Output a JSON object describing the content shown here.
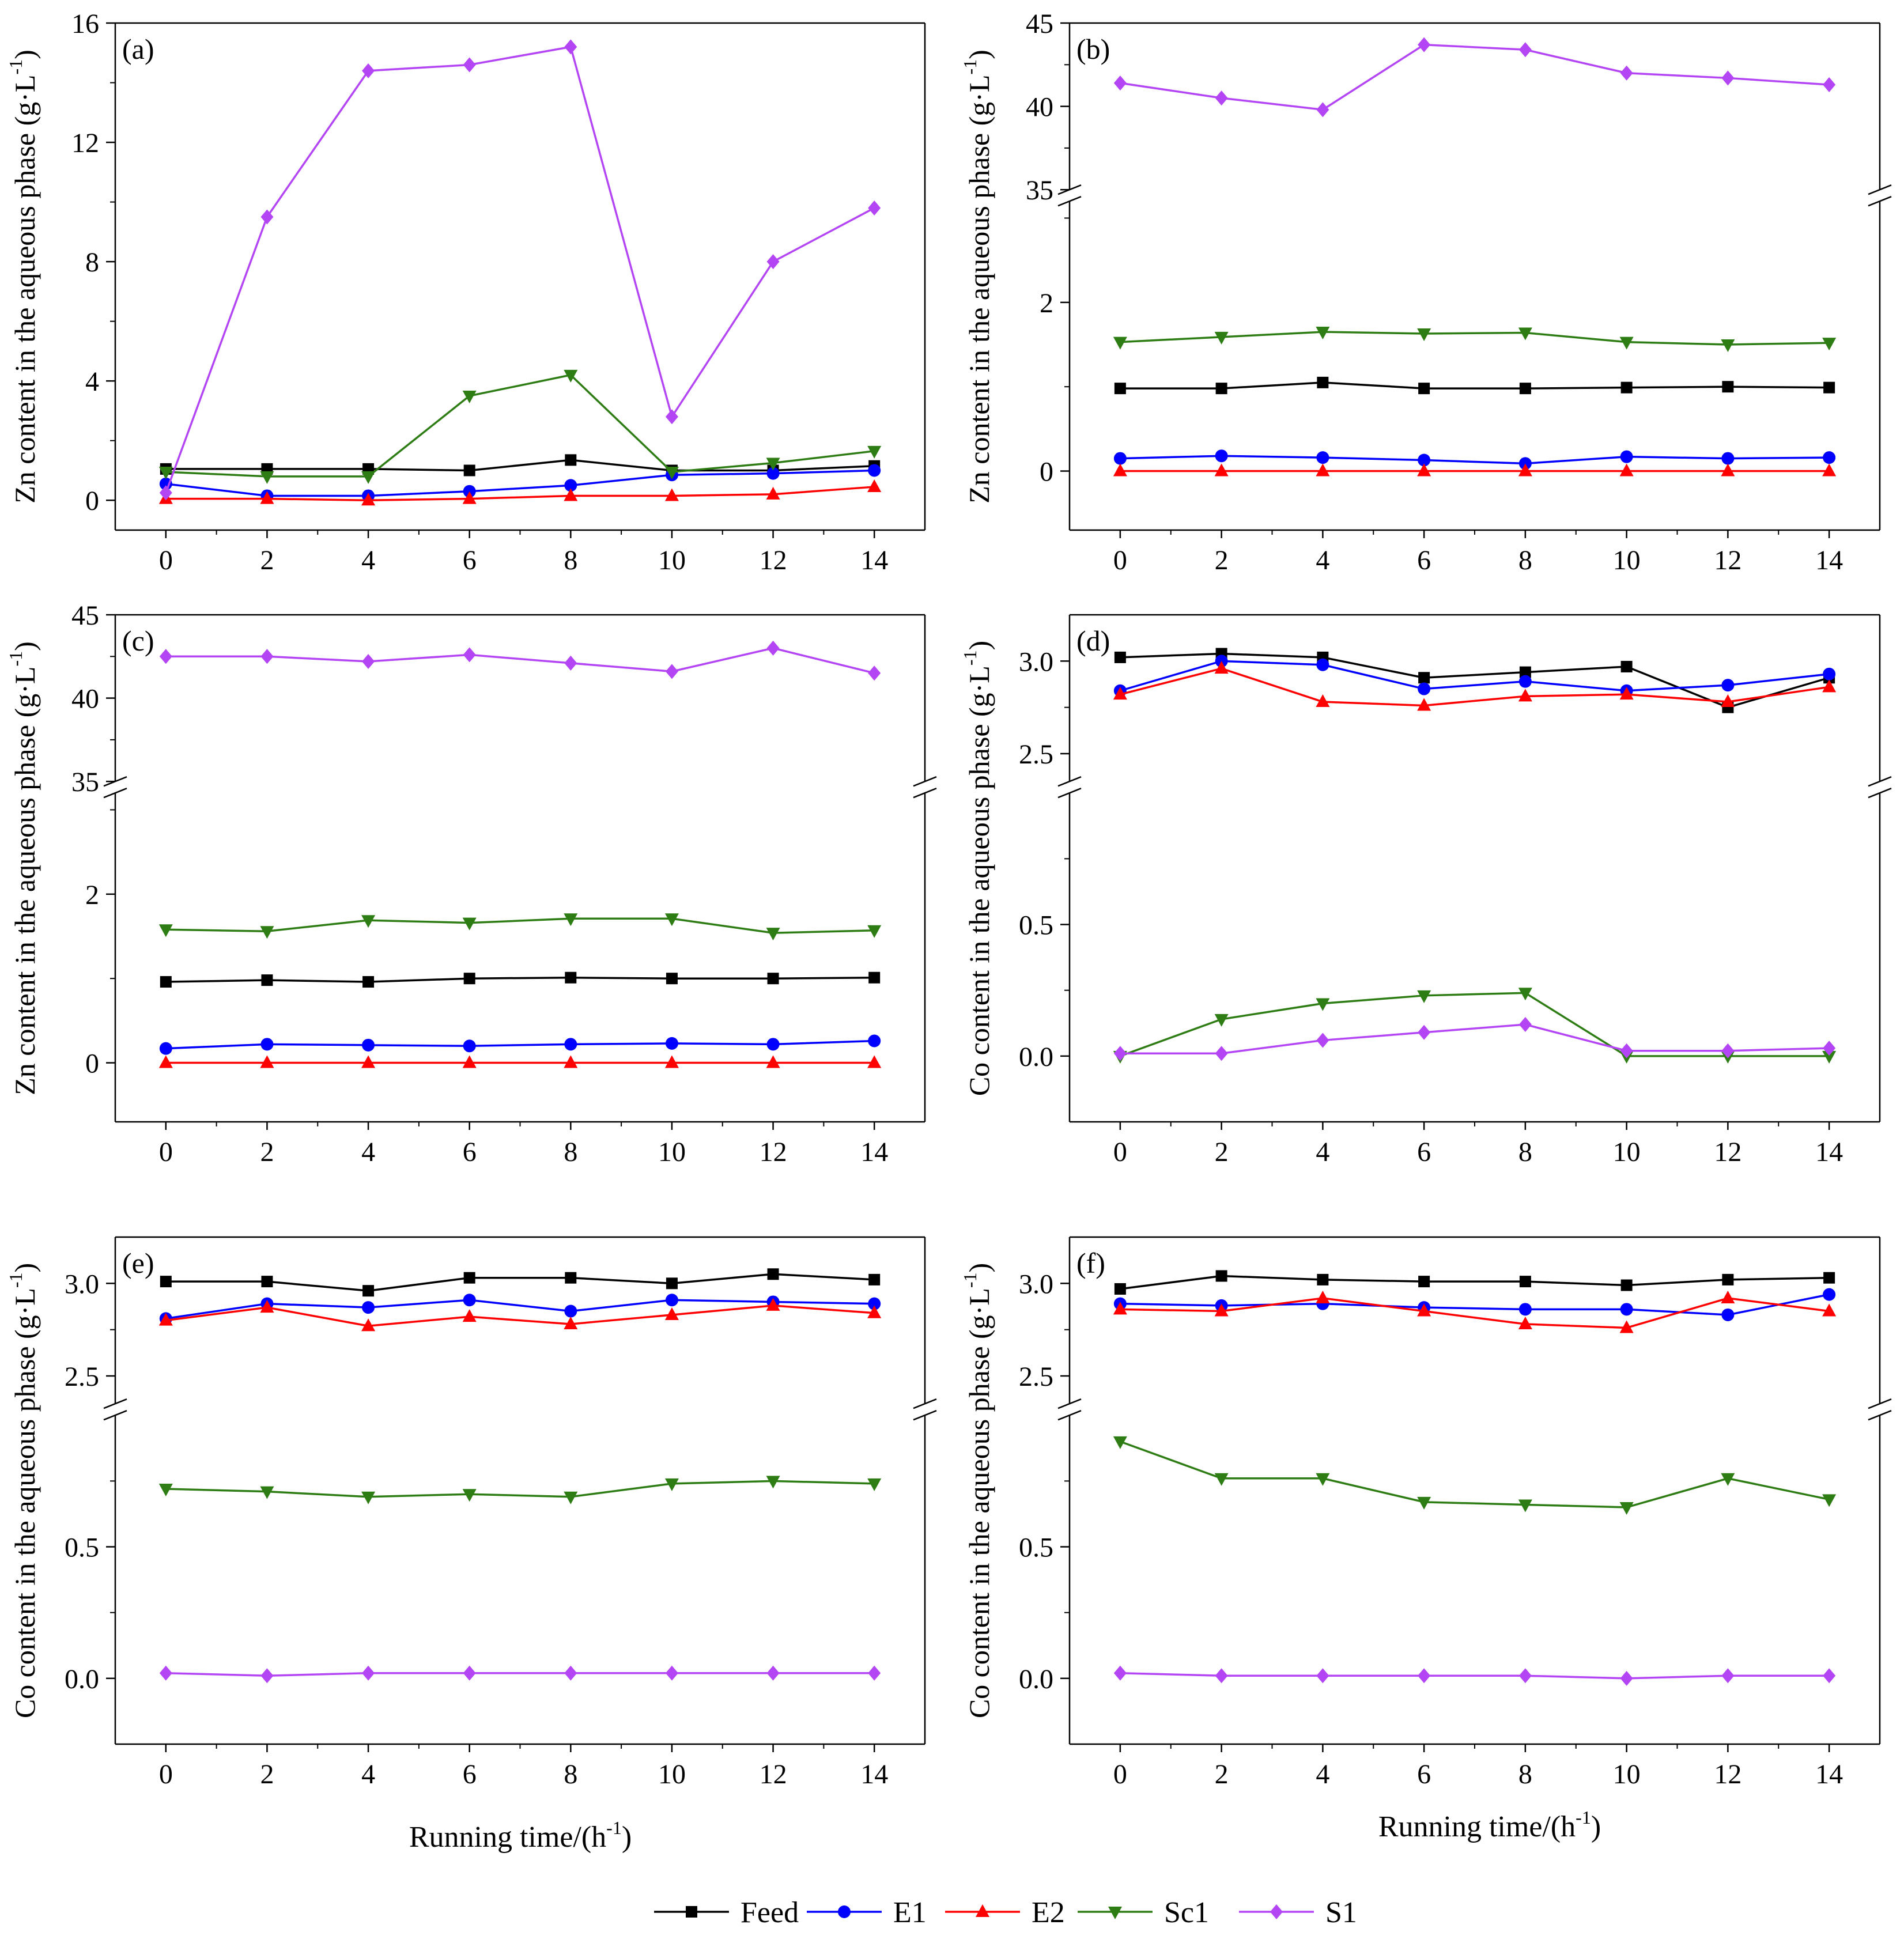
{
  "figure": {
    "xlabel": "Running time/(h",
    "xlabel_sup": "-1",
    "xlabel_close": ")"
  },
  "legend": [
    {
      "name": "Feed",
      "color": "#000000",
      "marker": "square"
    },
    {
      "name": "E1",
      "color": "#0000ff",
      "marker": "circle"
    },
    {
      "name": "E2",
      "color": "#ff0000",
      "marker": "triangle-up"
    },
    {
      "name": "Sc1",
      "color": "#2e7d14",
      "marker": "triangle-down"
    },
    {
      "name": "S1",
      "color": "#b445f5",
      "marker": "diamond"
    }
  ],
  "chart_data": [
    {
      "type": "line",
      "panel": "(a)",
      "element": "Zn",
      "ylabel": "Zn content in the aqueous phase (g·L",
      "ylabel_sup": "-1",
      "ylabel_close": ")",
      "x": [
        0,
        2,
        4,
        6,
        8,
        10,
        12,
        14
      ],
      "xlim": [
        -1,
        15
      ],
      "xticks": [
        "0",
        "2",
        "4",
        "6",
        "8",
        "10",
        "12",
        "14"
      ],
      "ylim": [
        -1,
        16
      ],
      "yticks": [
        "0",
        "4",
        "8",
        "12",
        "16"
      ],
      "series": [
        {
          "name": "Feed",
          "values": [
            1.05,
            1.05,
            1.05,
            1.0,
            1.35,
            1.0,
            1.0,
            1.15
          ]
        },
        {
          "name": "E1",
          "values": [
            0.55,
            0.15,
            0.15,
            0.3,
            0.5,
            0.85,
            0.9,
            1.0
          ]
        },
        {
          "name": "E2",
          "values": [
            0.05,
            0.05,
            0.0,
            0.05,
            0.15,
            0.15,
            0.2,
            0.45
          ]
        },
        {
          "name": "Sc1",
          "values": [
            0.95,
            0.8,
            0.8,
            3.5,
            4.2,
            0.95,
            1.25,
            1.65
          ]
        },
        {
          "name": "S1",
          "values": [
            0.25,
            9.5,
            14.4,
            14.6,
            15.2,
            2.8,
            8.0,
            9.8
          ]
        }
      ]
    },
    {
      "type": "line",
      "panel": "(b)",
      "element": "Zn",
      "ylabel": "Zn content in the aqueous phase (g·L",
      "ylabel_sup": "-1",
      "ylabel_close": ")",
      "x": [
        0,
        2,
        4,
        6,
        8,
        10,
        12,
        14
      ],
      "xlim": [
        -1,
        15
      ],
      "xticks": [
        "0",
        "2",
        "4",
        "6",
        "8",
        "10",
        "12",
        "14"
      ],
      "ylim_lower": [
        -0.7,
        3.2
      ],
      "ylim_upper": [
        35,
        45
      ],
      "yticks_lower": [
        "0",
        "2"
      ],
      "yticks_upper": [
        "35",
        "40",
        "45"
      ],
      "series": [
        {
          "name": "Feed",
          "values": [
            0.98,
            0.98,
            1.05,
            0.98,
            0.98,
            0.99,
            1.0,
            0.99
          ]
        },
        {
          "name": "E1",
          "values": [
            0.15,
            0.18,
            0.16,
            0.13,
            0.09,
            0.17,
            0.15,
            0.16
          ]
        },
        {
          "name": "E2",
          "values": [
            0.0,
            0.0,
            0.0,
            0.0,
            0.0,
            0.0,
            0.0,
            0.0
          ]
        },
        {
          "name": "Sc1",
          "values": [
            1.53,
            1.59,
            1.65,
            1.63,
            1.64,
            1.53,
            1.5,
            1.52
          ]
        },
        {
          "name": "S1",
          "values": [
            41.4,
            40.5,
            39.8,
            43.7,
            43.4,
            42.0,
            41.7,
            41.3
          ]
        }
      ]
    },
    {
      "type": "line",
      "panel": "(c)",
      "element": "Zn",
      "ylabel": "Zn content in the aqueous phase (g·L",
      "ylabel_sup": "-1",
      "ylabel_close": ")",
      "x": [
        0,
        2,
        4,
        6,
        8,
        10,
        12,
        14
      ],
      "xlim": [
        -1,
        15
      ],
      "xticks": [
        "0",
        "2",
        "4",
        "6",
        "8",
        "10",
        "12",
        "14"
      ],
      "ylim_lower": [
        -0.7,
        3.2
      ],
      "ylim_upper": [
        35,
        45
      ],
      "yticks_lower": [
        "0",
        "2"
      ],
      "yticks_upper": [
        "35",
        "40",
        "45"
      ],
      "series": [
        {
          "name": "Feed",
          "values": [
            0.96,
            0.98,
            0.96,
            1.0,
            1.01,
            1.0,
            1.0,
            1.01
          ]
        },
        {
          "name": "E1",
          "values": [
            0.17,
            0.22,
            0.21,
            0.2,
            0.22,
            0.23,
            0.22,
            0.26
          ]
        },
        {
          "name": "E2",
          "values": [
            0.0,
            0.0,
            0.0,
            0.0,
            0.0,
            0.0,
            0.0,
            0.0
          ]
        },
        {
          "name": "Sc1",
          "values": [
            1.58,
            1.56,
            1.69,
            1.66,
            1.71,
            1.71,
            1.54,
            1.57
          ]
        },
        {
          "name": "S1",
          "values": [
            42.5,
            42.5,
            42.2,
            42.6,
            42.1,
            41.6,
            43.0,
            41.5
          ]
        }
      ]
    },
    {
      "type": "line",
      "panel": "(d)",
      "element": "Co",
      "ylabel": "Co content in the aqueous phase (g·L",
      "ylabel_sup": "-1",
      "ylabel_close": ")",
      "x": [
        0,
        2,
        4,
        6,
        8,
        10,
        12,
        14
      ],
      "xlim": [
        -1,
        15
      ],
      "xticks": [
        "0",
        "2",
        "4",
        "6",
        "8",
        "10",
        "12",
        "14"
      ],
      "ylim_lower": [
        -0.25,
        1.0
      ],
      "ylim_upper": [
        2.35,
        3.25
      ],
      "yticks_lower": [
        "0.0",
        "0.5"
      ],
      "yticks_upper": [
        "2.5",
        "3.0"
      ],
      "series": [
        {
          "name": "Feed",
          "values": [
            3.02,
            3.04,
            3.02,
            2.91,
            2.94,
            2.97,
            2.75,
            2.91
          ]
        },
        {
          "name": "E1",
          "values": [
            2.84,
            3.0,
            2.98,
            2.85,
            2.89,
            2.84,
            2.87,
            2.93
          ]
        },
        {
          "name": "E2",
          "values": [
            2.82,
            2.96,
            2.78,
            2.76,
            2.81,
            2.82,
            2.78,
            2.86
          ]
        },
        {
          "name": "Sc1",
          "values": [
            0.0,
            0.14,
            0.2,
            0.23,
            0.24,
            0.0,
            0.0,
            0.0
          ]
        },
        {
          "name": "S1",
          "values": [
            0.01,
            0.01,
            0.06,
            0.09,
            0.12,
            0.02,
            0.02,
            0.03
          ]
        }
      ]
    },
    {
      "type": "line",
      "panel": "(e)",
      "element": "Co",
      "ylabel": "Co content in the aqueous phase (g·L",
      "ylabel_sup": "-1",
      "ylabel_close": ")",
      "x": [
        0,
        2,
        4,
        6,
        8,
        10,
        12,
        14
      ],
      "xlim": [
        -1,
        15
      ],
      "xticks": [
        "0",
        "2",
        "4",
        "6",
        "8",
        "10",
        "12",
        "14"
      ],
      "ylim_lower": [
        -0.25,
        1.0
      ],
      "ylim_upper": [
        2.35,
        3.25
      ],
      "yticks_lower": [
        "0.0",
        "0.5"
      ],
      "yticks_upper": [
        "2.5",
        "3.0"
      ],
      "series": [
        {
          "name": "Feed",
          "values": [
            3.01,
            3.01,
            2.96,
            3.03,
            3.03,
            3.0,
            3.05,
            3.02
          ]
        },
        {
          "name": "E1",
          "values": [
            2.81,
            2.89,
            2.87,
            2.91,
            2.85,
            2.91,
            2.9,
            2.89
          ]
        },
        {
          "name": "E2",
          "values": [
            2.8,
            2.87,
            2.77,
            2.82,
            2.78,
            2.83,
            2.88,
            2.84
          ]
        },
        {
          "name": "Sc1",
          "values": [
            0.72,
            0.71,
            0.69,
            0.7,
            0.69,
            0.74,
            0.75,
            0.74
          ]
        },
        {
          "name": "S1",
          "values": [
            0.02,
            0.01,
            0.02,
            0.02,
            0.02,
            0.02,
            0.02,
            0.02
          ]
        }
      ]
    },
    {
      "type": "line",
      "panel": "(f)",
      "element": "Co",
      "ylabel": "Co content in the aqueous phase (g·L",
      "ylabel_sup": "-1",
      "ylabel_close": ")",
      "x": [
        0,
        2,
        4,
        6,
        8,
        10,
        12,
        14
      ],
      "xlim": [
        -1,
        15
      ],
      "xticks": [
        "0",
        "2",
        "4",
        "6",
        "8",
        "10",
        "12",
        "14"
      ],
      "ylim_lower": [
        -0.25,
        1.0
      ],
      "ylim_upper": [
        2.35,
        3.25
      ],
      "yticks_lower": [
        "0.0",
        "0.5"
      ],
      "yticks_upper": [
        "2.5",
        "3.0"
      ],
      "series": [
        {
          "name": "Feed",
          "values": [
            2.97,
            3.04,
            3.02,
            3.01,
            3.01,
            2.99,
            3.02,
            3.03
          ]
        },
        {
          "name": "E1",
          "values": [
            2.89,
            2.88,
            2.89,
            2.87,
            2.86,
            2.86,
            2.83,
            2.94
          ]
        },
        {
          "name": "E2",
          "values": [
            2.86,
            2.85,
            2.92,
            2.85,
            2.78,
            2.76,
            2.92,
            2.85
          ]
        },
        {
          "name": "Sc1",
          "values": [
            0.9,
            0.76,
            0.76,
            0.67,
            0.66,
            0.65,
            0.76,
            0.68
          ]
        },
        {
          "name": "S1",
          "values": [
            0.02,
            0.01,
            0.01,
            0.01,
            0.01,
            0.0,
            0.01,
            0.01
          ]
        }
      ]
    }
  ]
}
